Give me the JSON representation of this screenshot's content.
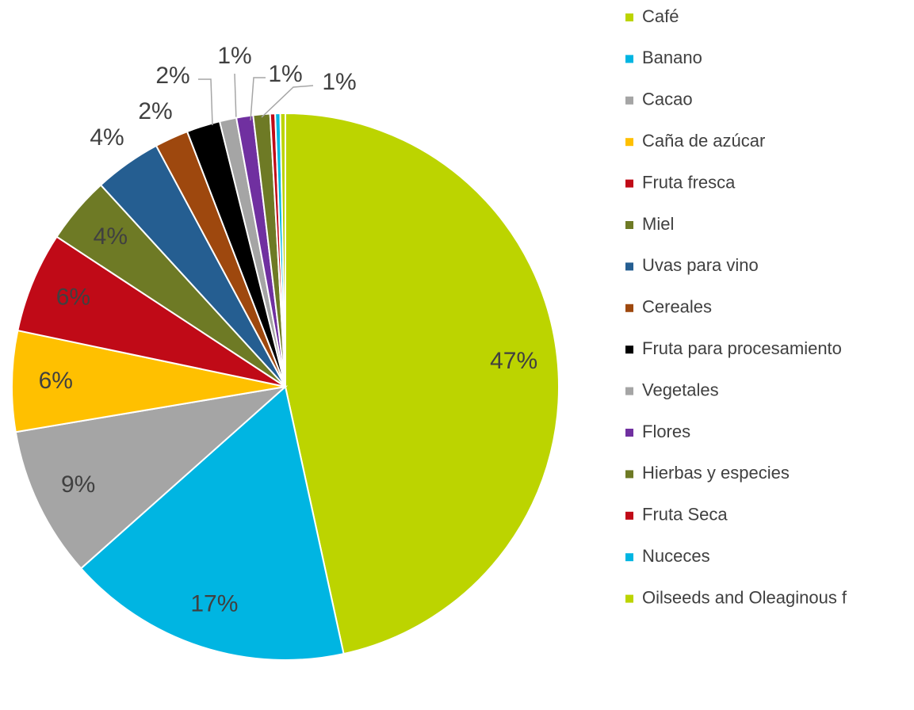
{
  "chart_data": {
    "type": "pie",
    "categories": [
      "Café",
      "Banano",
      "Cacao",
      "Caña de azúcar",
      "Fruta fresca",
      "Miel",
      "Uvas para vino",
      "Cereales",
      "Fruta para procesamiento",
      "Vegetales",
      "Flores",
      "Hierbas y especies",
      "Fruta Seca",
      "Nuceces",
      "Oilseeds and Oleaginous f"
    ],
    "values": [
      47,
      17,
      9,
      6,
      6,
      4,
      4,
      2,
      2,
      1,
      1,
      1,
      0.3,
      0.3,
      0.3
    ],
    "value_labels": [
      "47%",
      "17%",
      "9%",
      "6%",
      "6%",
      "4%",
      "4%",
      "2%",
      "2%",
      "1%",
      "1%",
      "1%",
      null,
      null,
      null
    ],
    "colors": [
      "#bcd400",
      "#00b5e2",
      "#a5a5a5",
      "#ffc000",
      "#c00a17",
      "#6e7a25",
      "#255e91",
      "#9e480e",
      "#000000",
      "#a5a5a5",
      "#7030a0",
      "#6e7a25",
      "#c00a17",
      "#00b5e2",
      "#bcd400"
    ],
    "legend": "right"
  }
}
